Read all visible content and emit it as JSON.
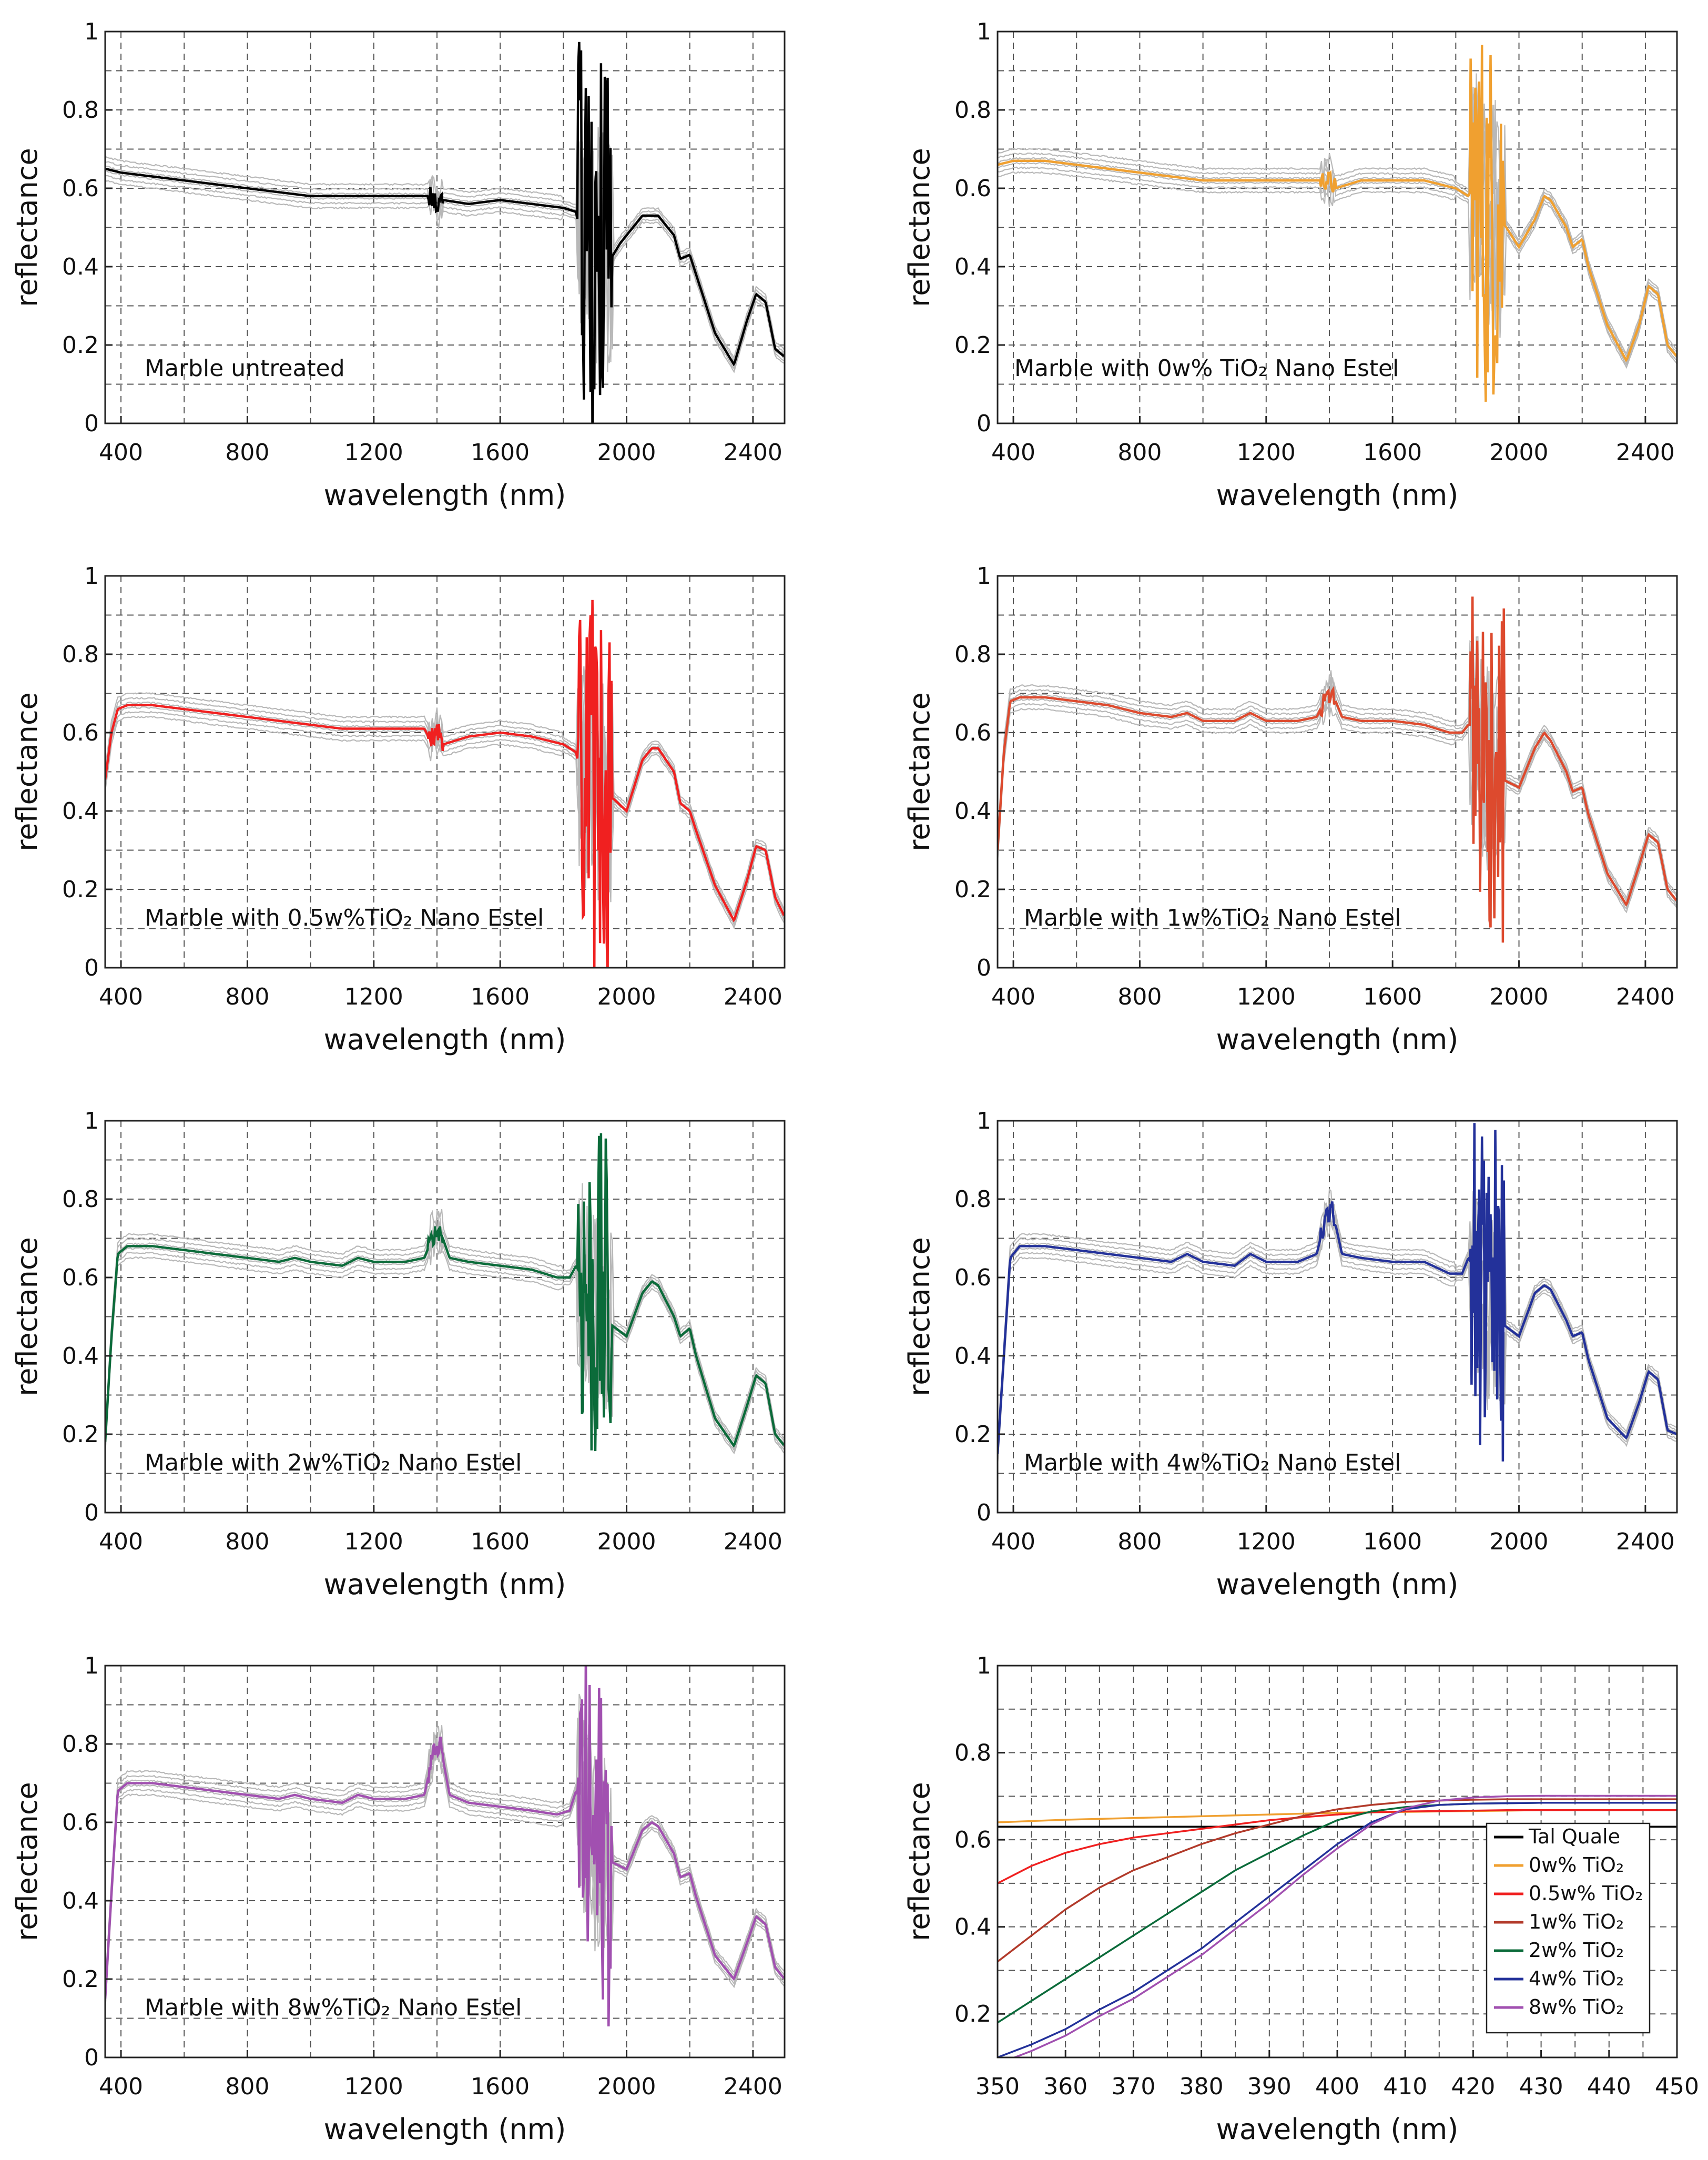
{
  "chart_data": [
    {
      "type": "line",
      "id": "p1",
      "label": "Marble untreated",
      "color": "#000000",
      "xlabel": "wavelength (nm)",
      "ylabel": "reflectance",
      "xlim": [
        350,
        2500
      ],
      "ylim": [
        0,
        1
      ],
      "xticks": [
        400,
        800,
        1200,
        1600,
        2000,
        2400
      ],
      "yticks": [
        0,
        0.2,
        0.4,
        0.6,
        0.8,
        1
      ],
      "yticklabels": [
        "0",
        "0.2",
        "0.4",
        "0.6",
        "0.8",
        "1"
      ],
      "grid": true,
      "noise_amplitude": 0.45,
      "x": [
        350,
        400,
        500,
        600,
        700,
        800,
        900,
        1000,
        1100,
        1200,
        1300,
        1380,
        1400,
        1420,
        1500,
        1600,
        1700,
        1800,
        1840,
        1860,
        1880,
        1900,
        1920,
        1940,
        1950,
        1980,
        2000,
        2050,
        2100,
        2150,
        2170,
        2200,
        2220,
        2280,
        2340,
        2380,
        2410,
        2440,
        2470,
        2500
      ],
      "y": [
        0.65,
        0.64,
        0.63,
        0.62,
        0.61,
        0.6,
        0.59,
        0.58,
        0.58,
        0.58,
        0.58,
        0.58,
        0.56,
        0.57,
        0.56,
        0.57,
        0.56,
        0.55,
        0.54,
        0.45,
        0.52,
        0.4,
        0.5,
        0.44,
        0.42,
        0.46,
        0.48,
        0.53,
        0.53,
        0.48,
        0.42,
        0.43,
        0.38,
        0.23,
        0.15,
        0.26,
        0.33,
        0.31,
        0.19,
        0.17
      ]
    },
    {
      "type": "line",
      "id": "p2",
      "label": "Marble with 0w% TiO₂ Nano Estel",
      "color": "#f0a030",
      "xlabel": "wavelength (nm)",
      "ylabel": "reflectance",
      "xlim": [
        350,
        2500
      ],
      "ylim": [
        0,
        1
      ],
      "xticks": [
        400,
        800,
        1200,
        1600,
        2000,
        2400
      ],
      "yticks": [
        0,
        0.2,
        0.4,
        0.6,
        0.8,
        1
      ],
      "yticklabels": [
        "0",
        "0.2",
        "0.4",
        "0.6",
        "0.8",
        "1"
      ],
      "grid": true,
      "noise_amplitude": 0.45,
      "x": [
        350,
        400,
        500,
        600,
        700,
        800,
        900,
        1000,
        1100,
        1200,
        1300,
        1380,
        1400,
        1420,
        1500,
        1600,
        1700,
        1800,
        1840,
        1860,
        1880,
        1900,
        1920,
        1940,
        1960,
        2000,
        2050,
        2080,
        2100,
        2150,
        2170,
        2200,
        2220,
        2280,
        2340,
        2380,
        2410,
        2440,
        2470,
        2500
      ],
      "y": [
        0.66,
        0.67,
        0.67,
        0.66,
        0.65,
        0.64,
        0.63,
        0.62,
        0.62,
        0.62,
        0.62,
        0.62,
        0.62,
        0.6,
        0.62,
        0.62,
        0.62,
        0.6,
        0.58,
        0.62,
        0.55,
        0.5,
        0.55,
        0.52,
        0.5,
        0.45,
        0.52,
        0.58,
        0.57,
        0.5,
        0.45,
        0.47,
        0.4,
        0.25,
        0.16,
        0.25,
        0.35,
        0.33,
        0.2,
        0.17
      ]
    },
    {
      "type": "line",
      "id": "p3",
      "label": "Marble with 0.5w%TiO₂ Nano Estel",
      "color": "#f02020",
      "xlabel": "wavelength (nm)",
      "ylabel": "reflectance",
      "xlim": [
        350,
        2500
      ],
      "ylim": [
        0,
        1
      ],
      "xticks": [
        400,
        800,
        1200,
        1600,
        2000,
        2400
      ],
      "yticks": [
        0,
        0.2,
        0.4,
        0.6,
        0.8,
        1
      ],
      "yticklabels": [
        "0",
        "0.2",
        "0.4",
        "0.6",
        "0.8",
        "1"
      ],
      "grid": true,
      "noise_amplitude": 0.45,
      "x": [
        350,
        370,
        390,
        420,
        500,
        600,
        700,
        800,
        900,
        1000,
        1100,
        1200,
        1300,
        1360,
        1380,
        1400,
        1420,
        1500,
        1600,
        1700,
        1800,
        1840,
        1860,
        1880,
        1900,
        1920,
        1940,
        1960,
        2000,
        2050,
        2080,
        2100,
        2150,
        2170,
        2200,
        2220,
        2280,
        2340,
        2380,
        2410,
        2440,
        2470,
        2500
      ],
      "y": [
        0.48,
        0.6,
        0.66,
        0.67,
        0.67,
        0.66,
        0.65,
        0.64,
        0.63,
        0.62,
        0.61,
        0.61,
        0.61,
        0.61,
        0.58,
        0.61,
        0.57,
        0.59,
        0.6,
        0.59,
        0.57,
        0.55,
        0.47,
        0.55,
        0.45,
        0.5,
        0.44,
        0.43,
        0.4,
        0.53,
        0.56,
        0.56,
        0.5,
        0.42,
        0.4,
        0.35,
        0.21,
        0.12,
        0.22,
        0.31,
        0.3,
        0.18,
        0.13
      ]
    },
    {
      "type": "line",
      "id": "p4",
      "label": "Marble with 1w%TiO₂ Nano Estel",
      "color": "#dd4a2e",
      "xlabel": "wavelength (nm)",
      "ylabel": "reflectance",
      "xlim": [
        350,
        2500
      ],
      "ylim": [
        0,
        1
      ],
      "xticks": [
        400,
        800,
        1200,
        1600,
        2000,
        2400
      ],
      "yticks": [
        0,
        0.2,
        0.4,
        0.6,
        0.8,
        1
      ],
      "yticklabels": [
        "0",
        "0.2",
        "0.4",
        "0.6",
        "0.8",
        "1"
      ],
      "grid": true,
      "noise_amplitude": 0.4,
      "x": [
        350,
        370,
        390,
        420,
        500,
        600,
        700,
        800,
        900,
        950,
        1000,
        1100,
        1150,
        1200,
        1300,
        1360,
        1390,
        1410,
        1440,
        1500,
        1600,
        1700,
        1780,
        1820,
        1840,
        1860,
        1880,
        1900,
        1920,
        1950,
        2000,
        2050,
        2080,
        2100,
        2150,
        2170,
        2200,
        2220,
        2280,
        2340,
        2380,
        2410,
        2440,
        2470,
        2500
      ],
      "y": [
        0.3,
        0.55,
        0.68,
        0.69,
        0.69,
        0.68,
        0.67,
        0.65,
        0.64,
        0.65,
        0.63,
        0.63,
        0.65,
        0.63,
        0.63,
        0.64,
        0.69,
        0.7,
        0.64,
        0.63,
        0.63,
        0.62,
        0.6,
        0.6,
        0.62,
        0.62,
        0.55,
        0.5,
        0.55,
        0.48,
        0.46,
        0.56,
        0.6,
        0.58,
        0.5,
        0.45,
        0.46,
        0.39,
        0.24,
        0.16,
        0.26,
        0.34,
        0.32,
        0.2,
        0.17
      ]
    },
    {
      "type": "line",
      "id": "p5",
      "label": "Marble with 2w%TiO₂ Nano Estel",
      "color": "#0b6b3a",
      "xlabel": "wavelength (nm)",
      "ylabel": "reflectance",
      "xlim": [
        350,
        2500
      ],
      "ylim": [
        0,
        1
      ],
      "xticks": [
        400,
        800,
        1200,
        1600,
        2000,
        2400
      ],
      "yticks": [
        0,
        0.2,
        0.4,
        0.6,
        0.8,
        1
      ],
      "yticklabels": [
        "0",
        "0.2",
        "0.4",
        "0.6",
        "0.8",
        "1"
      ],
      "grid": true,
      "noise_amplitude": 0.4,
      "x": [
        350,
        370,
        390,
        420,
        500,
        600,
        700,
        800,
        900,
        950,
        1000,
        1100,
        1150,
        1200,
        1300,
        1360,
        1390,
        1410,
        1440,
        1500,
        1600,
        1700,
        1780,
        1820,
        1840,
        1860,
        1880,
        1900,
        1920,
        1950,
        2000,
        2050,
        2080,
        2100,
        2150,
        2170,
        2200,
        2220,
        2280,
        2340,
        2380,
        2410,
        2440,
        2470,
        2500
      ],
      "y": [
        0.18,
        0.45,
        0.66,
        0.68,
        0.68,
        0.67,
        0.66,
        0.65,
        0.64,
        0.65,
        0.64,
        0.63,
        0.65,
        0.64,
        0.64,
        0.65,
        0.71,
        0.72,
        0.65,
        0.64,
        0.63,
        0.62,
        0.6,
        0.6,
        0.63,
        0.6,
        0.55,
        0.5,
        0.55,
        0.48,
        0.45,
        0.56,
        0.59,
        0.58,
        0.5,
        0.45,
        0.47,
        0.4,
        0.24,
        0.17,
        0.27,
        0.35,
        0.33,
        0.2,
        0.17
      ]
    },
    {
      "type": "line",
      "id": "p6",
      "label": "Marble with 4w%TiO₂ Nano Estel",
      "color": "#23319a",
      "xlabel": "wavelength (nm)",
      "ylabel": "reflectance",
      "xlim": [
        350,
        2500
      ],
      "ylim": [
        0,
        1
      ],
      "xticks": [
        400,
        800,
        1200,
        1600,
        2000,
        2400
      ],
      "yticks": [
        0,
        0.2,
        0.4,
        0.6,
        0.8,
        1
      ],
      "yticklabels": [
        "0",
        "0.2",
        "0.4",
        "0.6",
        "0.8",
        "1"
      ],
      "grid": true,
      "noise_amplitude": 0.4,
      "x": [
        350,
        370,
        390,
        420,
        500,
        600,
        700,
        800,
        900,
        950,
        1000,
        1100,
        1150,
        1200,
        1300,
        1360,
        1390,
        1410,
        1440,
        1500,
        1600,
        1700,
        1780,
        1820,
        1840,
        1860,
        1880,
        1900,
        1920,
        1950,
        2000,
        2050,
        2080,
        2100,
        2150,
        2170,
        2200,
        2220,
        2280,
        2340,
        2380,
        2410,
        2440,
        2470,
        2500
      ],
      "y": [
        0.15,
        0.4,
        0.65,
        0.68,
        0.68,
        0.67,
        0.66,
        0.65,
        0.64,
        0.66,
        0.64,
        0.63,
        0.66,
        0.64,
        0.64,
        0.66,
        0.76,
        0.77,
        0.66,
        0.65,
        0.64,
        0.64,
        0.61,
        0.61,
        0.65,
        0.62,
        0.55,
        0.5,
        0.55,
        0.48,
        0.45,
        0.56,
        0.58,
        0.57,
        0.49,
        0.45,
        0.46,
        0.39,
        0.24,
        0.19,
        0.28,
        0.36,
        0.34,
        0.21,
        0.2
      ]
    },
    {
      "type": "line",
      "id": "p7",
      "label": "Marble with 8w%TiO₂ Nano Estel",
      "color": "#a150b0",
      "xlabel": "wavelength (nm)",
      "ylabel": "reflectance",
      "xlim": [
        350,
        2500
      ],
      "ylim": [
        0,
        1
      ],
      "xticks": [
        400,
        800,
        1200,
        1600,
        2000,
        2400
      ],
      "yticks": [
        0,
        0.2,
        0.4,
        0.6,
        0.8,
        1
      ],
      "yticklabels": [
        "0",
        "0.2",
        "0.4",
        "0.6",
        "0.8",
        "1"
      ],
      "grid": true,
      "noise_amplitude": 0.4,
      "x": [
        350,
        370,
        390,
        420,
        500,
        600,
        700,
        800,
        900,
        950,
        1000,
        1100,
        1150,
        1200,
        1300,
        1360,
        1390,
        1410,
        1440,
        1500,
        1600,
        1700,
        1780,
        1820,
        1840,
        1860,
        1880,
        1900,
        1920,
        1950,
        2000,
        2050,
        2080,
        2100,
        2150,
        2170,
        2200,
        2220,
        2280,
        2340,
        2380,
        2410,
        2440,
        2470,
        2500
      ],
      "y": [
        0.15,
        0.42,
        0.68,
        0.7,
        0.7,
        0.69,
        0.68,
        0.67,
        0.66,
        0.67,
        0.66,
        0.65,
        0.67,
        0.66,
        0.66,
        0.67,
        0.78,
        0.8,
        0.67,
        0.65,
        0.64,
        0.63,
        0.62,
        0.63,
        0.68,
        0.64,
        0.58,
        0.52,
        0.56,
        0.5,
        0.48,
        0.58,
        0.6,
        0.59,
        0.52,
        0.46,
        0.47,
        0.41,
        0.26,
        0.2,
        0.29,
        0.36,
        0.34,
        0.23,
        0.2
      ]
    },
    {
      "type": "line",
      "id": "p8",
      "xlabel": "wavelength (nm)",
      "ylabel": "reflectance",
      "xlim": [
        350,
        450
      ],
      "ylim": [
        0.1,
        1
      ],
      "xticks": [
        350,
        360,
        370,
        380,
        390,
        400,
        410,
        420,
        430,
        440,
        450
      ],
      "yticks": [
        0.2,
        0.4,
        0.6,
        0.8,
        1
      ],
      "yticklabels": [
        "0.2",
        "0.4",
        "0.6",
        "0.8",
        "1"
      ],
      "ygrid_values": [
        0.2,
        0.3,
        0.4,
        0.5,
        0.6,
        0.7,
        0.8,
        0.9,
        1
      ],
      "grid": true,
      "x": [
        350,
        355,
        360,
        365,
        370,
        375,
        380,
        385,
        390,
        395,
        400,
        405,
        410,
        415,
        420,
        425,
        430,
        435,
        440,
        445,
        450
      ],
      "series": [
        {
          "name": "Tal Quale",
          "color": "#000000",
          "values": [
            0.63,
            0.63,
            0.63,
            0.63,
            0.63,
            0.63,
            0.63,
            0.63,
            0.63,
            0.63,
            0.63,
            0.63,
            0.63,
            0.63,
            0.63,
            0.63,
            0.63,
            0.63,
            0.63,
            0.63,
            0.63
          ]
        },
        {
          "name": "0w% TiO₂",
          "color": "#f0a030",
          "values": [
            0.64,
            0.643,
            0.646,
            0.648,
            0.65,
            0.652,
            0.654,
            0.656,
            0.658,
            0.66,
            0.662,
            0.663,
            0.664,
            0.665,
            0.666,
            0.667,
            0.668,
            0.668,
            0.668,
            0.668,
            0.668
          ]
        },
        {
          "name": "0.5w% TiO₂",
          "color": "#f02020",
          "values": [
            0.5,
            0.54,
            0.57,
            0.59,
            0.605,
            0.615,
            0.625,
            0.635,
            0.645,
            0.652,
            0.658,
            0.663,
            0.665,
            0.666,
            0.667,
            0.668,
            0.668,
            0.668,
            0.668,
            0.668,
            0.668
          ]
        },
        {
          "name": "1w% TiO₂",
          "color": "#b23a2a",
          "values": [
            0.32,
            0.38,
            0.44,
            0.49,
            0.53,
            0.56,
            0.59,
            0.615,
            0.635,
            0.655,
            0.67,
            0.68,
            0.687,
            0.69,
            0.692,
            0.693,
            0.693,
            0.693,
            0.693,
            0.693,
            0.693
          ]
        },
        {
          "name": "2w% TiO₂",
          "color": "#0b6b3a",
          "values": [
            0.18,
            0.23,
            0.28,
            0.33,
            0.38,
            0.43,
            0.48,
            0.53,
            0.57,
            0.61,
            0.645,
            0.665,
            0.675,
            0.68,
            0.683,
            0.684,
            0.685,
            0.685,
            0.685,
            0.685,
            0.685
          ]
        },
        {
          "name": "4w% TiO₂",
          "color": "#23319a",
          "values": [
            0.1,
            0.13,
            0.165,
            0.21,
            0.25,
            0.3,
            0.35,
            0.41,
            0.47,
            0.53,
            0.59,
            0.64,
            0.67,
            0.68,
            0.683,
            0.684,
            0.685,
            0.685,
            0.685,
            0.685,
            0.685
          ]
        },
        {
          "name": "8w% TiO₂",
          "color": "#a150b0",
          "values": [
            0.085,
            0.115,
            0.15,
            0.195,
            0.235,
            0.285,
            0.335,
            0.395,
            0.455,
            0.52,
            0.58,
            0.635,
            0.672,
            0.69,
            0.697,
            0.7,
            0.701,
            0.701,
            0.701,
            0.701,
            0.701
          ]
        }
      ]
    }
  ]
}
